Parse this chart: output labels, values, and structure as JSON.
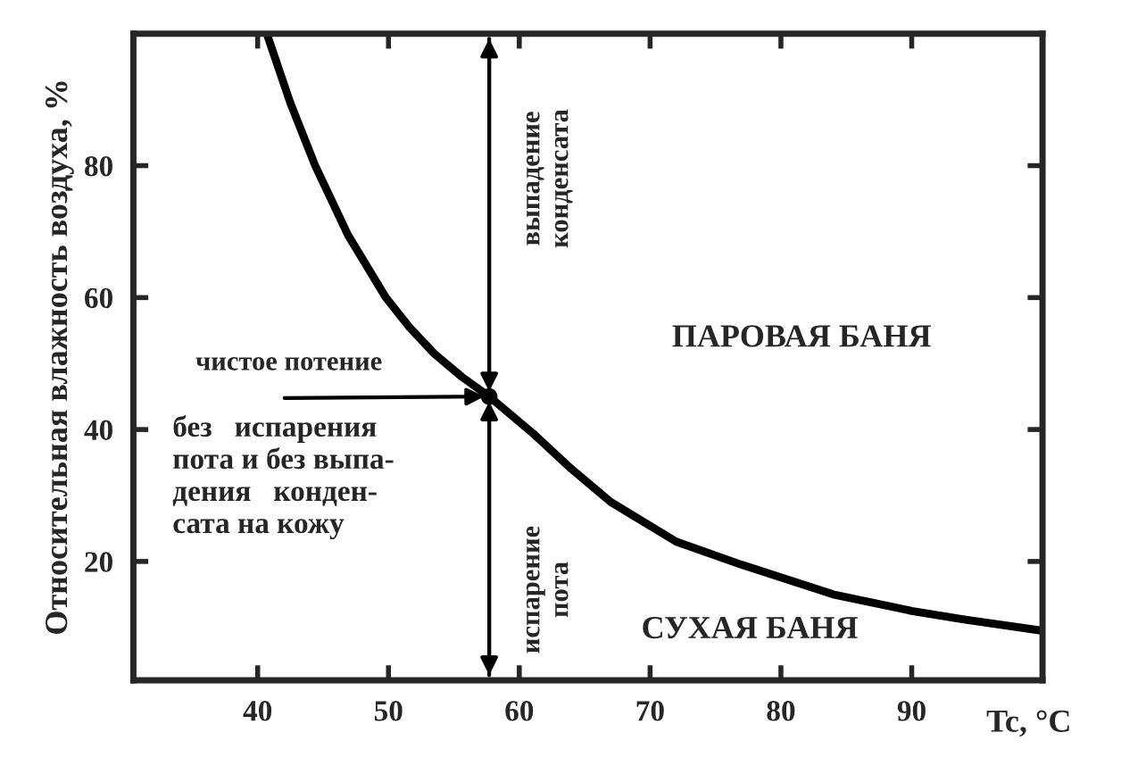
{
  "chart_data": {
    "type": "line",
    "xlabel": "Tc, °C",
    "ylabel": "Относительная влажность воздуха, %",
    "xlim": [
      30.5,
      100
    ],
    "ylim": [
      2,
      100
    ],
    "xticks": [
      40,
      50,
      60,
      70,
      80,
      90
    ],
    "yticks": [
      20,
      40,
      60,
      80
    ],
    "grid": false,
    "series": [
      {
        "color": "#000000",
        "x": [
          40.7,
          42.5,
          44.4,
          46.9,
          49.8,
          51.6,
          53.5,
          55.6,
          57.7,
          61,
          64,
          67,
          72,
          77,
          84,
          90,
          94,
          100
        ],
        "values": [
          100,
          89.5,
          80,
          69.5,
          60,
          55.5,
          51.5,
          48,
          45,
          39.5,
          34,
          29,
          23,
          19.5,
          15,
          12.5,
          11.2,
          9.5
        ]
      },
      {
        "type": "scatter",
        "color": "#000000",
        "x": [
          57.7
        ],
        "values": [
          45
        ]
      }
    ],
    "annotations": [
      {
        "text": "чистое потение",
        "x": 57.7,
        "y": 45
      },
      "выпадение\nконденсата",
      "испарение\nпота",
      "без   испарения\nпота и без выпа-\nдения   конден-\nсата на кожу",
      "ПАРОВАЯ БАНЯ",
      "СУХАЯ БАНЯ"
    ]
  }
}
